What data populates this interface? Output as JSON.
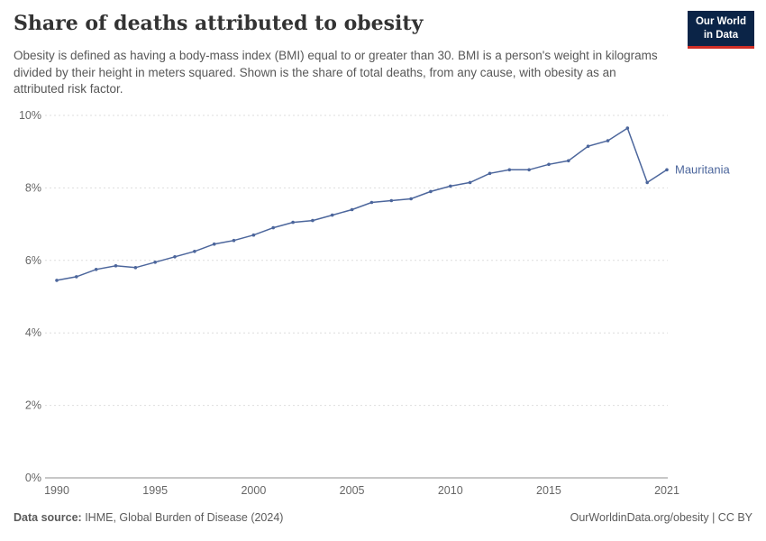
{
  "header": {
    "title": "Share of deaths attributed to obesity",
    "subtitle": "Obesity is defined as having a body-mass index (BMI) equal to or greater than 30. BMI is a person's weight in kilograms divided by their height in meters squared. Shown is the share of total deaths, from any cause, with obesity as an attributed risk factor.",
    "logo": {
      "line1": "Our World",
      "line2": "in Data",
      "bg_color": "#0b2447",
      "accent_color": "#cf2e26"
    }
  },
  "chart_data": {
    "type": "line",
    "title": "Share of deaths attributed to obesity",
    "xlabel": "",
    "ylabel": "",
    "xlim": [
      1990,
      2021
    ],
    "ylim": [
      0,
      10
    ],
    "grid": "dashed horizontal gridlines at each 2%",
    "legend_position": "end-of-line label",
    "x_ticks": [
      1990,
      1995,
      2000,
      2005,
      2010,
      2015,
      2021
    ],
    "y_ticks": [
      {
        "value": 0,
        "label": "0%"
      },
      {
        "value": 2,
        "label": "2%"
      },
      {
        "value": 4,
        "label": "4%"
      },
      {
        "value": 6,
        "label": "6%"
      },
      {
        "value": 8,
        "label": "8%"
      },
      {
        "value": 10,
        "label": "10%"
      }
    ],
    "series": [
      {
        "name": "Mauritania",
        "color": "#4c669c",
        "years": [
          1990,
          1991,
          1992,
          1993,
          1994,
          1995,
          1996,
          1997,
          1998,
          1999,
          2000,
          2001,
          2002,
          2003,
          2004,
          2005,
          2006,
          2007,
          2008,
          2009,
          2010,
          2011,
          2012,
          2013,
          2014,
          2015,
          2016,
          2017,
          2018,
          2019,
          2020,
          2021
        ],
        "values": [
          5.45,
          5.55,
          5.75,
          5.85,
          5.8,
          5.95,
          6.1,
          6.25,
          6.45,
          6.55,
          6.7,
          6.9,
          7.05,
          7.1,
          7.25,
          7.4,
          7.6,
          7.65,
          7.7,
          7.9,
          8.05,
          8.15,
          8.4,
          8.5,
          8.5,
          8.65,
          8.75,
          9.15,
          9.3,
          9.65,
          8.15,
          8.5
        ]
      }
    ]
  },
  "footer": {
    "source_label": "Data source:",
    "source_text": " IHME, Global Burden of Disease (2024)",
    "credit": "OurWorldinData.org/obesity | CC BY"
  }
}
